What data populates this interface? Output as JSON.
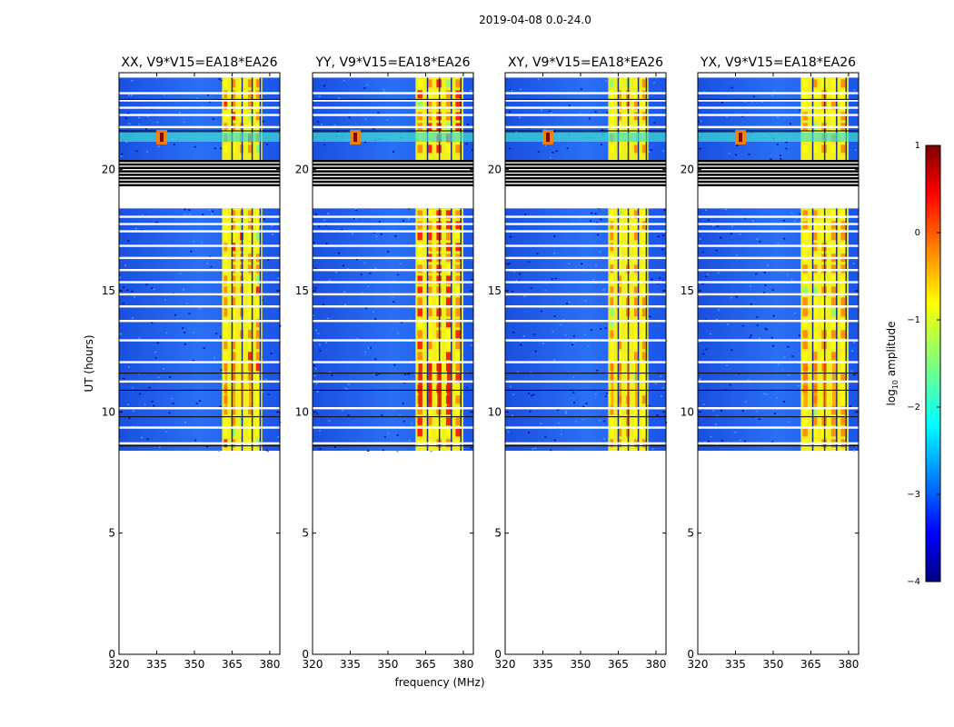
{
  "figure": {
    "suptitle": "2019-04-08 0.0-24.0"
  },
  "chart_data": {
    "type": "heatmap",
    "ylabel": "UT (hours)",
    "xlabel": "frequency (MHz)",
    "xlim": [
      320,
      384
    ],
    "ylim": [
      0,
      24
    ],
    "xticks": [
      320,
      335,
      350,
      365,
      380
    ],
    "xtick_labels": [
      "320",
      "335",
      "350",
      "365",
      "380"
    ],
    "yticks": [
      0,
      5,
      10,
      15,
      20
    ],
    "ytick_labels": [
      "0",
      "5",
      "10",
      "15",
      "20"
    ],
    "data_coverage_ut_hours": [
      8.4,
      23.8
    ],
    "flagged_ut_band_hours": [
      19.3,
      20.4
    ],
    "bright_band_mhz": [
      361,
      377
    ],
    "rfi_line_ut_hour": 21.3,
    "panels": [
      {
        "title": "XX, V9*V15=EA18*EA26",
        "bright_band_mhz": [
          361,
          377
        ],
        "peak_log_amplitude": 0.1
      },
      {
        "title": "YY, V9*V15=EA18*EA26",
        "bright_band_mhz": [
          361,
          380
        ],
        "peak_log_amplitude": 0.4
      },
      {
        "title": "XY, V9*V15=EA18*EA26",
        "bright_band_mhz": [
          361,
          377
        ],
        "peak_log_amplitude": 0.0
      },
      {
        "title": "YX, V9*V15=EA18*EA26",
        "bright_band_mhz": [
          361,
          380
        ],
        "peak_log_amplitude": 0.0
      }
    ],
    "colorbar": {
      "label": "log10 amplitude",
      "label_prefix": "log",
      "label_sub": "10",
      "label_suffix": " amplitude",
      "range": [
        -4,
        1
      ],
      "ticks": [
        1,
        0,
        -1,
        -2,
        -3,
        -4
      ],
      "tick_labels": [
        "1",
        "0",
        "−1",
        "−2",
        "−3",
        "−4"
      ],
      "colormap": "jet",
      "stops": [
        "#00007f",
        "#0000ff",
        "#007fff",
        "#00ffff",
        "#7fff7f",
        "#ffff00",
        "#ff7f00",
        "#ff0000",
        "#7f0000"
      ]
    }
  }
}
